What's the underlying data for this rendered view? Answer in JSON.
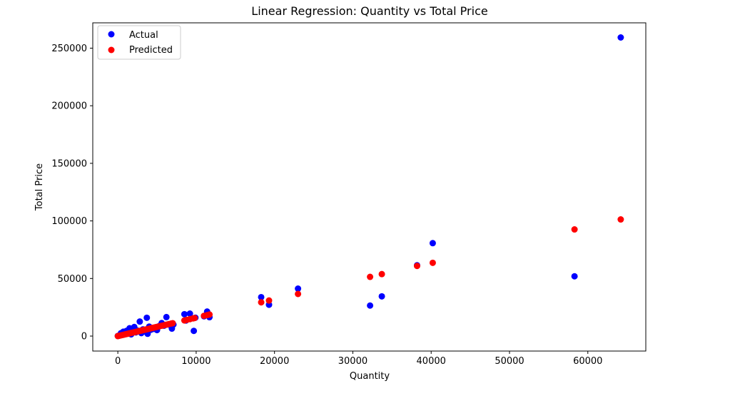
{
  "chart_data": {
    "type": "scatter",
    "title": "Linear Regression: Quantity vs Total Price",
    "xlabel": "Quantity",
    "ylabel": "Total Price",
    "xlim": [
      -3200,
      67400
    ],
    "ylim": [
      -13000,
      272000
    ],
    "xticks": [
      0,
      10000,
      20000,
      30000,
      40000,
      50000,
      60000
    ],
    "yticks": [
      0,
      50000,
      100000,
      150000,
      200000,
      250000
    ],
    "grid": false,
    "legend_position": "top-left",
    "series": [
      {
        "name": "Actual",
        "color": "#0000ff",
        "points": [
          [
            0,
            100
          ],
          [
            120,
            300
          ],
          [
            250,
            900
          ],
          [
            400,
            2500
          ],
          [
            500,
            1200
          ],
          [
            700,
            3800
          ],
          [
            900,
            1800
          ],
          [
            1100,
            4500
          ],
          [
            1300,
            2800
          ],
          [
            1500,
            6800
          ],
          [
            1700,
            1500
          ],
          [
            1900,
            5200
          ],
          [
            2100,
            7900
          ],
          [
            2300,
            3200
          ],
          [
            2500,
            4800
          ],
          [
            2800,
            12600
          ],
          [
            3000,
            2600
          ],
          [
            3200,
            5800
          ],
          [
            3500,
            4000
          ],
          [
            3700,
            15900
          ],
          [
            3800,
            2000
          ],
          [
            4000,
            8200
          ],
          [
            4200,
            5500
          ],
          [
            4500,
            6200
          ],
          [
            4800,
            7300
          ],
          [
            5000,
            5200
          ],
          [
            5300,
            8800
          ],
          [
            5600,
            11300
          ],
          [
            5900,
            9000
          ],
          [
            6200,
            16500
          ],
          [
            6600,
            9800
          ],
          [
            6900,
            6500
          ],
          [
            7100,
            10000
          ],
          [
            8500,
            19000
          ],
          [
            8700,
            13500
          ],
          [
            9200,
            19500
          ],
          [
            9700,
            4500
          ],
          [
            9900,
            16000
          ],
          [
            11000,
            17200
          ],
          [
            11400,
            21300
          ],
          [
            11700,
            16400
          ],
          [
            18300,
            33800
          ],
          [
            19300,
            27200
          ],
          [
            23000,
            41200
          ],
          [
            32200,
            26500
          ],
          [
            33700,
            34500
          ],
          [
            38200,
            61500
          ],
          [
            40200,
            80700
          ],
          [
            58300,
            51900
          ],
          [
            64200,
            259300
          ]
        ]
      },
      {
        "name": "Predicted",
        "color": "#ff0000",
        "points": [
          [
            0,
            0
          ],
          [
            200,
            320
          ],
          [
            400,
            640
          ],
          [
            600,
            960
          ],
          [
            800,
            1280
          ],
          [
            1000,
            1600
          ],
          [
            1200,
            1920
          ],
          [
            1400,
            2240
          ],
          [
            1600,
            2560
          ],
          [
            1800,
            2880
          ],
          [
            2000,
            3200
          ],
          [
            2200,
            3520
          ],
          [
            2400,
            3840
          ],
          [
            2600,
            4160
          ],
          [
            2800,
            4480
          ],
          [
            3000,
            4800
          ],
          [
            3200,
            5120
          ],
          [
            3400,
            5440
          ],
          [
            3600,
            5760
          ],
          [
            3800,
            6080
          ],
          [
            4000,
            6400
          ],
          [
            4200,
            6720
          ],
          [
            4400,
            7040
          ],
          [
            4600,
            7360
          ],
          [
            4800,
            7680
          ],
          [
            5000,
            8000
          ],
          [
            5300,
            8480
          ],
          [
            5600,
            8960
          ],
          [
            5900,
            9440
          ],
          [
            6200,
            9920
          ],
          [
            6500,
            10400
          ],
          [
            6800,
            10880
          ],
          [
            7000,
            11200
          ],
          [
            8500,
            13600
          ],
          [
            8800,
            14080
          ],
          [
            9200,
            14720
          ],
          [
            9600,
            15360
          ],
          [
            9800,
            15680
          ],
          [
            11000,
            17600
          ],
          [
            11400,
            18240
          ],
          [
            11700,
            18720
          ],
          [
            18300,
            29300
          ],
          [
            19300,
            30900
          ],
          [
            23000,
            36600
          ],
          [
            32200,
            51400
          ],
          [
            33700,
            53800
          ],
          [
            38200,
            60900
          ],
          [
            40200,
            63600
          ],
          [
            58300,
            92600
          ],
          [
            64200,
            101300
          ]
        ]
      }
    ]
  }
}
